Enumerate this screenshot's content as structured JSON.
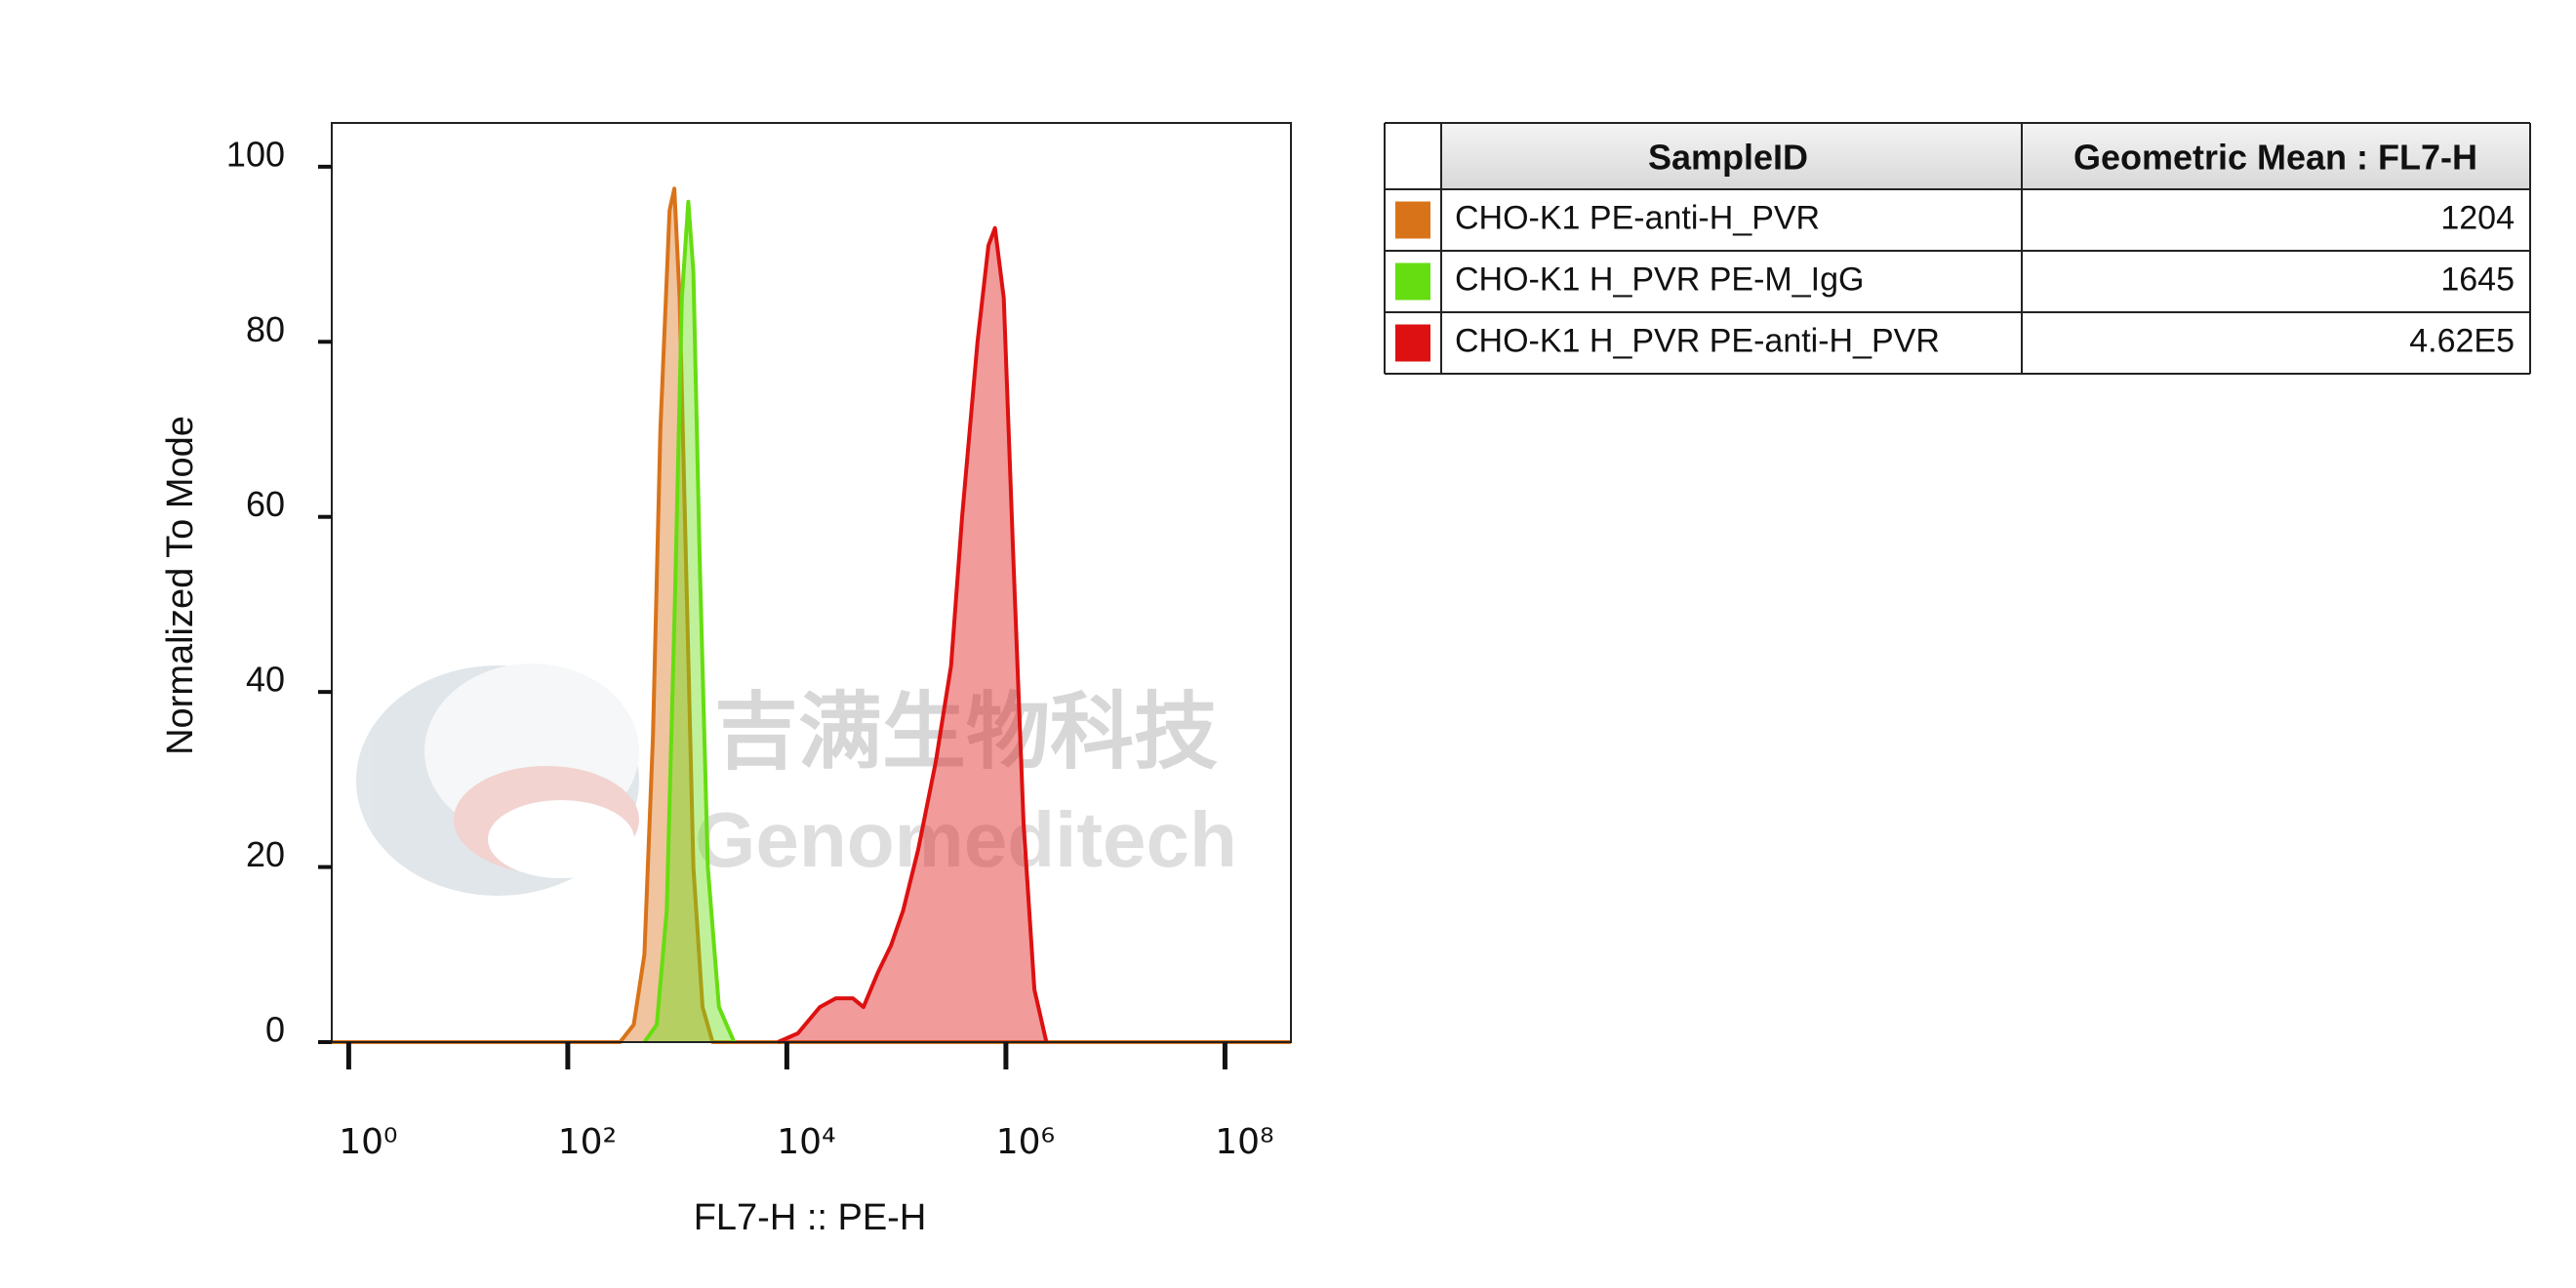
{
  "chart_data": {
    "type": "histogram-overlay",
    "x_label": "FL7-H :: PE-H",
    "y_label": "Normalized To Mode",
    "xscale": "log",
    "xlim": [
      0.7,
      400000000
    ],
    "xticks": [
      {
        "value": 1,
        "label": "10⁰"
      },
      {
        "value": 100,
        "label": "10²"
      },
      {
        "value": 10000,
        "label": "10⁴"
      },
      {
        "value": 1000000,
        "label": "10⁶"
      },
      {
        "value": 100000000,
        "label": "10⁸"
      }
    ],
    "ylim": [
      0,
      105
    ],
    "yticks": [
      0,
      20,
      40,
      60,
      80,
      100
    ],
    "series": [
      {
        "name": "CHO-K1 PE-anti-H_PVR",
        "color": "#d9731a",
        "x": [
          0.7,
          300,
          400,
          500,
          600,
          700,
          850,
          940,
          1050,
          1200,
          1400,
          1700,
          2100,
          400000000
        ],
        "values": [
          0,
          0,
          2,
          10,
          35,
          70,
          95,
          97.5,
          85,
          55,
          20,
          4,
          0,
          0
        ]
      },
      {
        "name": "CHO-K1 H_PVR PE-M_IgG",
        "color": "#66dd11",
        "x": [
          500,
          650,
          800,
          950,
          1100,
          1260,
          1400,
          1600,
          1900,
          2400,
          3300
        ],
        "values": [
          0,
          2,
          15,
          50,
          85,
          96,
          88,
          55,
          20,
          4,
          0
        ]
      },
      {
        "name": "CHO-K1 H_PVR PE-anti-H_PVR",
        "color": "#dd1111",
        "x": [
          8300,
          12600,
          20000,
          28000,
          40000,
          50000,
          68000,
          89000,
          115000,
          158000,
          229000,
          316000,
          398000,
          550000,
          692000,
          794000,
          955000,
          1170000,
          1450000,
          1820000,
          2340000
        ],
        "values": [
          0,
          1,
          4,
          5,
          5,
          4,
          8,
          11,
          15,
          22,
          32,
          43,
          60,
          80,
          91,
          93,
          85,
          55,
          25,
          6,
          0
        ]
      }
    ],
    "table": {
      "headers": [
        "SampleID",
        "Geometric Mean : FL7-H"
      ],
      "geometric_means": [
        "1204",
        "1645",
        "4.62E5"
      ]
    },
    "watermark": {
      "cn": "吉满生物科技",
      "en": "Genomeditech"
    }
  }
}
